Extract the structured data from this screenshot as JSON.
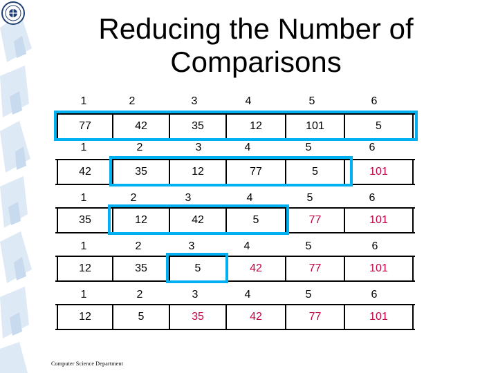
{
  "slide": {
    "title_line1": "Reducing the Number of",
    "title_line2": "Comparisons",
    "footer": "Computer Science Department",
    "logo": "university-seal"
  },
  "colors": {
    "accent": "#00b0f0",
    "sorted_text": "#c00040",
    "text": "#000000",
    "background_decoration": "#dde9f5"
  },
  "rows": [
    {
      "indices": [
        "1",
        "2",
        "3",
        "4",
        "5",
        "6"
      ],
      "values": [
        "77",
        "42",
        "35",
        "12",
        "101",
        "5"
      ],
      "sorted": [
        false,
        false,
        false,
        false,
        false,
        false
      ]
    },
    {
      "indices": [
        "1",
        "2",
        "3",
        "4",
        "5",
        "6"
      ],
      "values": [
        "42",
        "35",
        "12",
        "77",
        "5",
        "101"
      ],
      "sorted": [
        false,
        false,
        false,
        false,
        false,
        true
      ]
    },
    {
      "indices": [
        "1",
        "2",
        "3",
        "4",
        "5",
        "6"
      ],
      "values": [
        "35",
        "12",
        "42",
        "5",
        "77",
        "101"
      ],
      "sorted": [
        false,
        false,
        false,
        false,
        true,
        true
      ]
    },
    {
      "indices": [
        "1",
        "2",
        "3",
        "4",
        "5",
        "6"
      ],
      "values": [
        "12",
        "35",
        "5",
        "42",
        "77",
        "101"
      ],
      "sorted": [
        false,
        false,
        false,
        true,
        true,
        true
      ]
    },
    {
      "indices": [
        "1",
        "2",
        "3",
        "4",
        "5",
        "6"
      ],
      "values": [
        "12",
        "5",
        "35",
        "42",
        "77",
        "101"
      ],
      "sorted": [
        false,
        false,
        true,
        true,
        true,
        true
      ]
    }
  ]
}
